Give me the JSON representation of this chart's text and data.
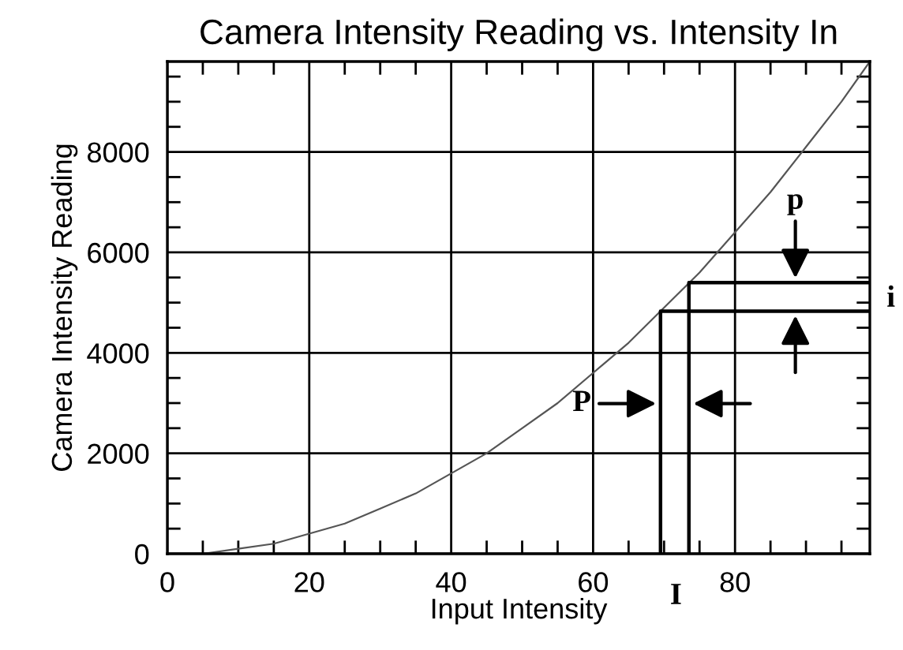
{
  "chart_data": {
    "type": "line",
    "title": "Camera Intensity Reading vs. Intensity In",
    "xlabel": "Input Intensity",
    "ylabel": "Camera Intensity Reading",
    "xlim": [
      0,
      99
    ],
    "ylim": [
      0,
      9800
    ],
    "xticks": [
      0,
      20,
      40,
      60,
      80
    ],
    "yticks": [
      0,
      2000,
      4000,
      6000,
      8000
    ],
    "grid": true,
    "marker": "none",
    "series": [
      {
        "color": "#555555",
        "x": [
          5,
          10,
          15,
          20,
          25,
          30,
          35,
          40,
          45,
          50,
          55,
          60,
          65,
          70,
          75,
          80,
          85,
          90,
          95,
          99
        ],
        "values": [
          0,
          100,
          200,
          400,
          600,
          900,
          1200,
          1600,
          2000,
          2500,
          3000,
          3600,
          4200,
          4900,
          5600,
          6400,
          7200,
          8100,
          9000,
          9800
        ]
      },
      {
        "color": "#000000",
        "x": [
          69.5,
          69.5,
          99
        ],
        "values": [
          0,
          4830,
          4830
        ]
      },
      {
        "color": "#000000",
        "x": [
          73.5,
          73.5,
          99
        ],
        "values": [
          0,
          5400,
          5400
        ]
      }
    ],
    "annotations": [
      "P",
      "I",
      "p",
      "i"
    ]
  }
}
